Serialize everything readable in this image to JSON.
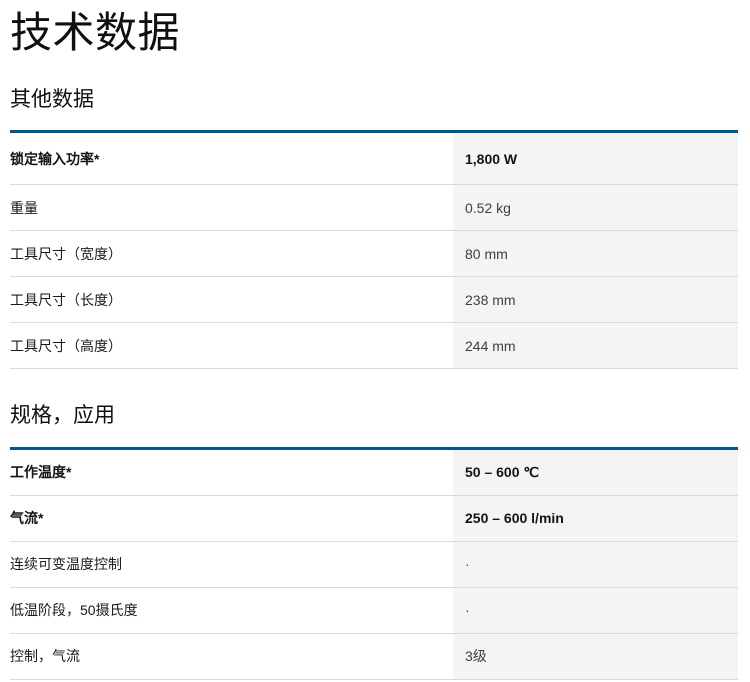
{
  "page": {
    "title": "技术数据"
  },
  "colors": {
    "accent": "#005691",
    "value-bg": "#f4f4f4",
    "divider": "#d9d9d9",
    "value-text": "#404040"
  },
  "sections": [
    {
      "heading": "其他数据",
      "rows": [
        {
          "label": "锁定输入功率*",
          "value": "1,800 W"
        },
        {
          "label": "重量",
          "value": "0.52 kg"
        },
        {
          "label": "工具尺寸（宽度）",
          "value": "80 mm"
        },
        {
          "label": "工具尺寸（长度）",
          "value": "238 mm"
        },
        {
          "label": "工具尺寸（高度）",
          "value": "244 mm"
        }
      ]
    },
    {
      "heading": "规格，应用",
      "rows": [
        {
          "label": "工作温度*",
          "value": "50 – 600 ℃"
        },
        {
          "label": "气流*",
          "value": "250 – 600 l/min"
        },
        {
          "label": "连续可变温度控制",
          "value": "·"
        },
        {
          "label": "低温阶段，50摄氏度",
          "value": "·"
        },
        {
          "label": "控制，气流",
          "value": "3级"
        }
      ]
    }
  ]
}
